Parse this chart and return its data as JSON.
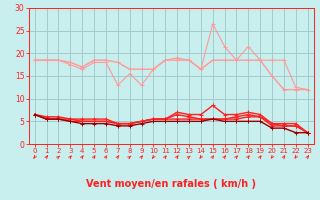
{
  "xlabel": "Vent moyen/en rafales ( km/h )",
  "background_color": "#c8eeee",
  "grid_color": "#a0cccc",
  "x": [
    0,
    1,
    2,
    3,
    4,
    5,
    6,
    7,
    8,
    9,
    10,
    11,
    12,
    13,
    14,
    15,
    16,
    17,
    18,
    19,
    20,
    21,
    22,
    23
  ],
  "ylim": [
    0,
    30
  ],
  "xlim": [
    -0.5,
    23.5
  ],
  "yticks": [
    0,
    5,
    10,
    15,
    20,
    25,
    30
  ],
  "line_pink1": [
    18.5,
    18.5,
    18.5,
    18.0,
    17.0,
    18.5,
    18.5,
    18.0,
    16.5,
    16.5,
    16.5,
    18.5,
    18.5,
    18.5,
    16.5,
    18.5,
    18.5,
    18.5,
    18.5,
    18.5,
    15.0,
    12.0,
    12.0,
    12.0
  ],
  "line_pink2": [
    18.5,
    18.5,
    18.5,
    17.5,
    16.5,
    18.0,
    18.0,
    13.0,
    15.5,
    13.0,
    16.5,
    18.5,
    19.0,
    18.5,
    16.5,
    26.5,
    21.5,
    18.5,
    21.5,
    18.5,
    18.5,
    18.5,
    12.5,
    12.0
  ],
  "line_red1": [
    6.5,
    6.0,
    6.0,
    5.5,
    5.5,
    5.5,
    5.5,
    4.5,
    4.5,
    5.0,
    5.5,
    5.5,
    7.0,
    6.5,
    6.5,
    8.5,
    6.5,
    6.5,
    7.0,
    6.5,
    4.5,
    4.5,
    4.5,
    2.5
  ],
  "line_red2": [
    6.5,
    5.5,
    5.5,
    5.5,
    5.0,
    5.0,
    5.0,
    4.5,
    4.5,
    5.0,
    5.5,
    5.5,
    6.5,
    6.0,
    5.5,
    5.5,
    5.5,
    6.0,
    6.5,
    6.0,
    4.5,
    4.0,
    4.0,
    2.5
  ],
  "line_red3": [
    6.5,
    5.5,
    5.5,
    5.0,
    5.0,
    5.0,
    5.0,
    4.5,
    4.5,
    5.0,
    5.5,
    5.5,
    5.5,
    5.5,
    5.5,
    5.5,
    5.5,
    5.5,
    6.0,
    6.0,
    4.0,
    4.0,
    4.0,
    2.5
  ],
  "line_darkred": [
    6.5,
    5.5,
    5.5,
    5.0,
    4.5,
    4.5,
    4.5,
    4.0,
    4.0,
    4.5,
    5.0,
    5.0,
    5.0,
    5.0,
    5.0,
    5.5,
    5.0,
    5.0,
    5.0,
    5.0,
    3.5,
    3.5,
    2.5,
    2.5
  ],
  "color_pink": "#ff9999",
  "color_red": "#ff2020",
  "color_darkred": "#990000",
  "arrow_angles": [
    225,
    45,
    30,
    45,
    45,
    45,
    45,
    45,
    30,
    45,
    225,
    45,
    45,
    30,
    225,
    45,
    45,
    45,
    45,
    45,
    225,
    45,
    225,
    45
  ]
}
